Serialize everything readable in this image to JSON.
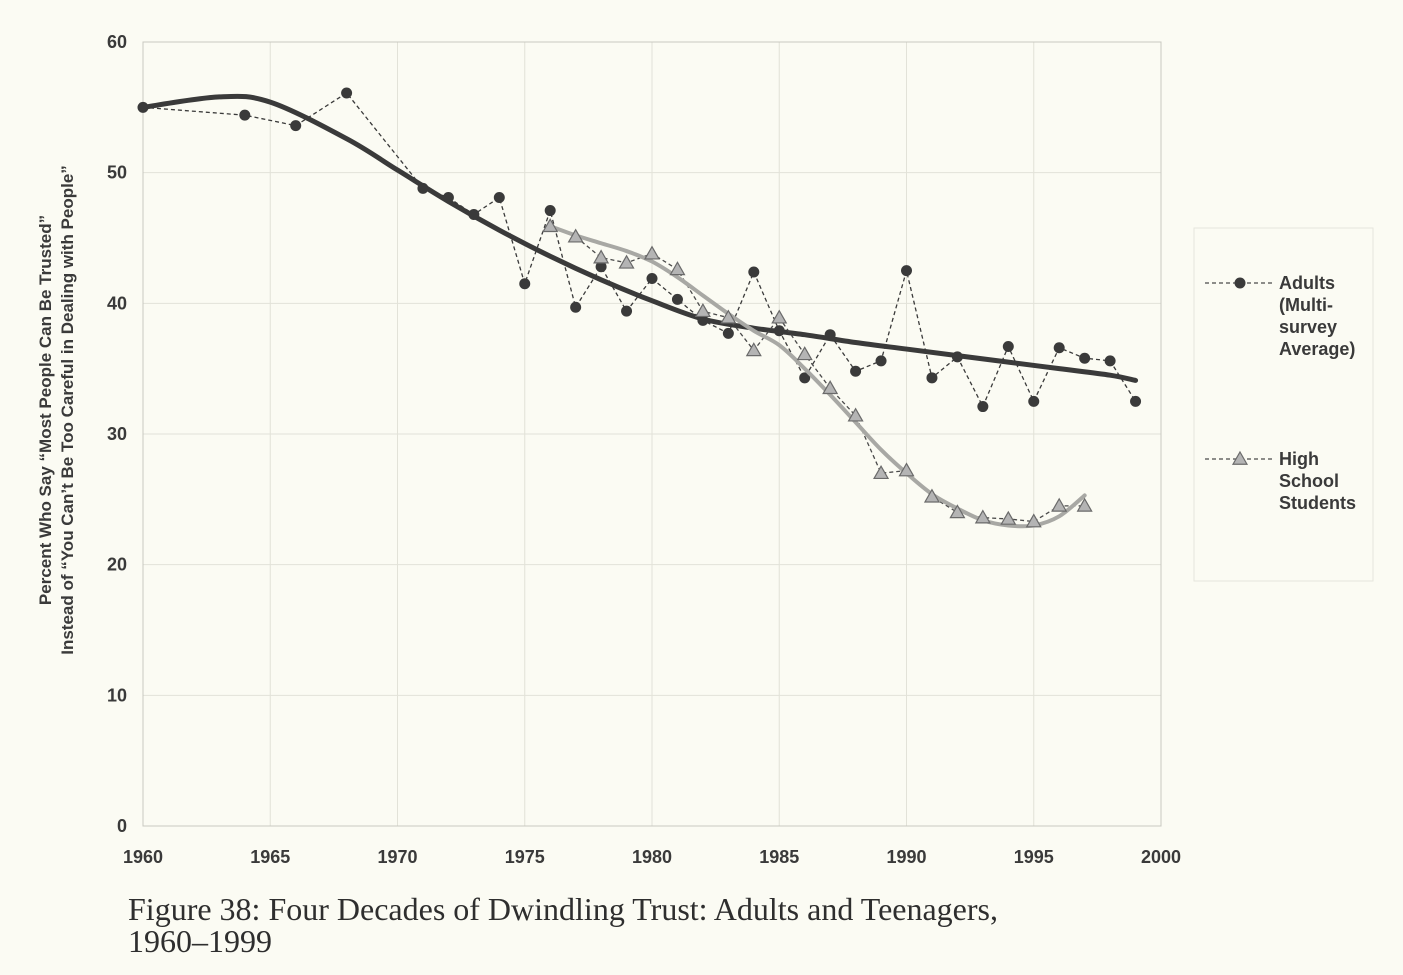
{
  "chart_data": {
    "type": "line",
    "title": "",
    "xlabel": "",
    "ylabel_line1": "Percent Who Say “Most People Can Be Trusted”",
    "ylabel_line2": "Instead of “You Can’t Be Too Careful in Dealing with People”",
    "xlim": [
      1960,
      2000
    ],
    "ylim": [
      0,
      60
    ],
    "xticks": [
      "1960",
      "1965",
      "1970",
      "1975",
      "1980",
      "1985",
      "1990",
      "1995",
      "2000"
    ],
    "yticks": [
      "0",
      "10",
      "20",
      "30",
      "40",
      "50",
      "60"
    ],
    "grid": true,
    "legend_position": "right",
    "series": [
      {
        "name": "Adults (Multi-survey Average)",
        "legend_lines": [
          "Adults",
          "(Multi-",
          "survey",
          "Average)"
        ],
        "marker": "circle",
        "color": "#3a3a3a",
        "x": [
          1960,
          1964,
          1966,
          1968,
          1971,
          1972,
          1973,
          1974,
          1975,
          1976,
          1977,
          1978,
          1979,
          1980,
          1981,
          1982,
          1983,
          1984,
          1985,
          1986,
          1987,
          1988,
          1989,
          1990,
          1991,
          1992,
          1993,
          1994,
          1995,
          1996,
          1997,
          1998,
          1999
        ],
        "y": [
          55,
          54.4,
          53.6,
          56.1,
          48.8,
          48.1,
          46.8,
          48.1,
          41.5,
          47.1,
          39.7,
          42.8,
          39.4,
          41.9,
          40.3,
          38.7,
          37.7,
          42.4,
          37.9,
          34.3,
          37.6,
          34.8,
          35.6,
          42.5,
          34.3,
          35.9,
          32.1,
          36.7,
          32.5,
          36.6,
          35.8,
          35.6,
          32.5
        ],
        "trend": {
          "x": [
            1960,
            1963,
            1965,
            1968,
            1970,
            1972,
            1974,
            1976,
            1978,
            1980,
            1982,
            1984,
            1986,
            1988,
            1990,
            1992,
            1994,
            1996,
            1998,
            1999
          ],
          "y": [
            55,
            55.8,
            55.4,
            52.6,
            50.2,
            47.8,
            45.6,
            43.6,
            41.8,
            40.2,
            38.8,
            38.1,
            37.6,
            37.0,
            36.5,
            36.0,
            35.5,
            35.0,
            34.5,
            34.1
          ]
        }
      },
      {
        "name": "High School Students",
        "legend_lines": [
          "High",
          "School",
          "Students"
        ],
        "marker": "triangle",
        "color": "#9a9a9a",
        "x": [
          1976,
          1977,
          1978,
          1979,
          1980,
          1981,
          1982,
          1983,
          1984,
          1985,
          1986,
          1987,
          1988,
          1989,
          1990,
          1991,
          1992,
          1993,
          1994,
          1995,
          1996,
          1997
        ],
        "y": [
          45.9,
          45.1,
          43.5,
          43.1,
          43.8,
          42.6,
          39.4,
          38.9,
          36.4,
          38.9,
          36.1,
          33.5,
          31.4,
          27.0,
          27.2,
          25.2,
          24.0,
          23.6,
          23.5,
          23.3,
          24.5,
          24.5
        ],
        "trend": {
          "x": [
            1976,
            1977,
            1978,
            1979,
            1980,
            1981,
            1982,
            1983,
            1984,
            1985,
            1986,
            1987,
            1988,
            1989,
            1990,
            1991,
            1992,
            1993,
            1994,
            1995,
            1996,
            1997
          ],
          "y": [
            45.9,
            45.2,
            44.6,
            44.0,
            43.2,
            42.0,
            40.6,
            39.2,
            37.9,
            36.8,
            35.0,
            33.0,
            30.9,
            28.8,
            27.0,
            25.4,
            24.3,
            23.4,
            23.0,
            23.0,
            23.7,
            25.3
          ]
        }
      }
    ]
  },
  "caption": {
    "line1": "Figure 38: Four Decades of Dwindling Trust: Adults and Teenagers,",
    "line2": "1960–1999"
  }
}
